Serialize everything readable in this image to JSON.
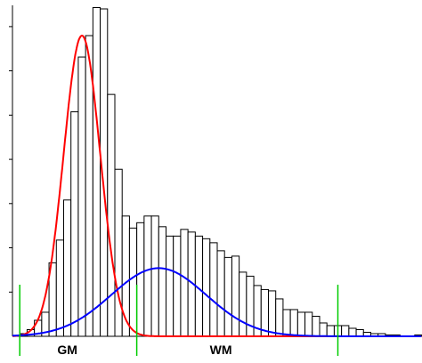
{
  "chart_data": {
    "type": "bar",
    "title": "",
    "xlabel": "",
    "ylabel": "",
    "grid": false,
    "histogram": {
      "bin_start": 1,
      "bin_width": 1,
      "values": [
        2,
        5,
        12,
        18,
        55,
        72,
        102,
        168,
        209,
        225,
        246,
        245,
        181,
        125,
        90,
        81,
        85,
        90,
        90,
        82,
        75,
        75,
        80,
        78,
        75,
        73,
        70,
        64,
        59,
        60,
        48,
        45,
        38,
        35,
        34,
        28,
        20,
        20,
        18,
        18,
        15,
        10,
        8,
        8,
        8,
        6,
        5,
        3,
        2,
        2,
        1,
        1,
        0,
        0,
        1
      ]
    },
    "series": [
      {
        "type": "line",
        "color": "#ff0000",
        "peak": 225,
        "mean": 9.5,
        "sd": 2.5
      },
      {
        "type": "line",
        "color": "#0000ff",
        "peak": 51,
        "mean": 20.0,
        "sd": 6.5
      }
    ],
    "xlim": [
      0,
      56
    ],
    "ylim": [
      0,
      245
    ],
    "y_minor_ticks": 7,
    "markers": [
      {
        "x": 1,
        "color": "#00cc00"
      },
      {
        "x": 17,
        "color": "#00cc00"
      },
      {
        "x": 44.5,
        "color": "#00cc00"
      }
    ],
    "region_labels": [
      {
        "text": "GM",
        "x": 7.5
      },
      {
        "text": "WM",
        "x": 28.5
      }
    ]
  }
}
